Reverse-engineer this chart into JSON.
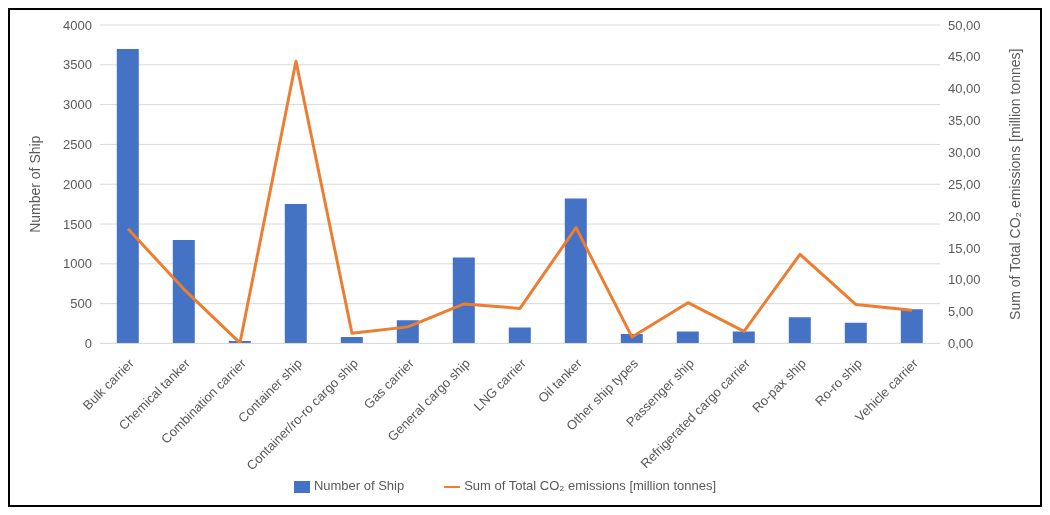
{
  "chart_data": {
    "type": "bar",
    "categories": [
      "Bulk carrier",
      "Chemical tanker",
      "Combination carrier",
      "Container ship",
      "Container/ro-ro cargo ship",
      "Gas carrier",
      "General cargo ship",
      "LNG carrier",
      "Oil tanker",
      "Other ship types",
      "Passenger ship",
      "Refrigerated cargo carrier",
      "Ro-pax ship",
      "Ro-ro ship",
      "Vehicle carrier"
    ],
    "series": [
      {
        "name": "Number of Ship",
        "color": "#4472c4",
        "values": [
          3700,
          1300,
          30,
          1750,
          80,
          290,
          1080,
          200,
          1820,
          120,
          150,
          150,
          330,
          260,
          430
        ]
      },
      {
        "name": "Sum of Total CO₂ emissions  [million tonnes]",
        "type": "line",
        "axis": "y2",
        "color": "#ed7d31",
        "values": [
          18.0,
          8.5,
          0.1,
          44.3,
          1.6,
          2.6,
          6.2,
          5.5,
          18.2,
          1.0,
          6.4,
          1.9,
          14.0,
          6.1,
          5.2
        ]
      }
    ],
    "ylabel": "Number of Ship",
    "y2label": "Sum of Total CO₂ emissions  [million tonnes]",
    "ylim": [
      0,
      4000
    ],
    "yticks": [
      0,
      500,
      1000,
      1500,
      2000,
      2500,
      3000,
      3500,
      4000
    ],
    "y2lim": [
      0,
      50
    ],
    "y2ticks": [
      {
        "value": 0,
        "label": "0,00"
      },
      {
        "value": 5,
        "label": "5,00"
      },
      {
        "value": 10,
        "label": "10,00"
      },
      {
        "value": 15,
        "label": "15,00"
      },
      {
        "value": 20,
        "label": "20,00"
      },
      {
        "value": 25,
        "label": "25,00"
      },
      {
        "value": 30,
        "label": "30,00"
      },
      {
        "value": 35,
        "label": "35,00"
      },
      {
        "value": 40,
        "label": "40,00"
      },
      {
        "value": 45,
        "label": "45,00"
      },
      {
        "value": 50,
        "label": "50,00"
      }
    ],
    "grid": "y",
    "legend": "bottom",
    "marker": "none"
  }
}
